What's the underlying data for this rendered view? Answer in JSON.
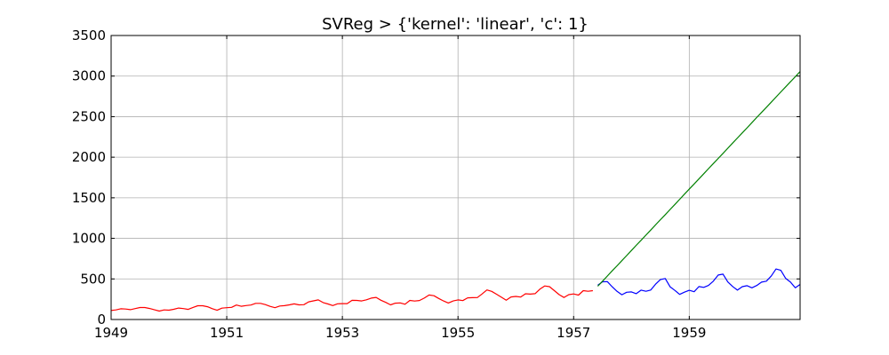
{
  "chart_data": {
    "type": "line",
    "title": "SVReg > {'kernel': 'linear', 'c': 1}",
    "xlabel": "",
    "ylabel": "",
    "xlim": [
      1949.0,
      1960.917
    ],
    "ylim": [
      0,
      3500
    ],
    "x_ticks": [
      1949,
      1951,
      1953,
      1955,
      1957,
      1959
    ],
    "x_tick_labels": [
      "1949",
      "1951",
      "1953",
      "1955",
      "1957",
      "1959"
    ],
    "y_ticks": [
      0,
      500,
      1000,
      1500,
      2000,
      2500,
      3000,
      3500
    ],
    "y_tick_labels": [
      "0",
      "500",
      "1000",
      "1500",
      "2000",
      "2500",
      "3000",
      "3500"
    ],
    "grid": true,
    "legend": "none",
    "series": [
      {
        "color": "#ff0000",
        "x_start": 1949.0,
        "x_step": 0.08333,
        "values": [
          112,
          118,
          132,
          129,
          121,
          135,
          148,
          148,
          136,
          119,
          104,
          118,
          115,
          126,
          141,
          135,
          125,
          149,
          170,
          170,
          158,
          133,
          114,
          140,
          145,
          150,
          178,
          163,
          172,
          178,
          199,
          199,
          184,
          162,
          146,
          166,
          171,
          180,
          193,
          181,
          183,
          218,
          230,
          242,
          209,
          191,
          172,
          194,
          196,
          196,
          236,
          235,
          229,
          243,
          264,
          272,
          237,
          211,
          180,
          201,
          204,
          188,
          235,
          227,
          234,
          264,
          302,
          293,
          259,
          229,
          203,
          229,
          242,
          233,
          267,
          269,
          270,
          315,
          364,
          347,
          312,
          274,
          237,
          278,
          284,
          277,
          317,
          313,
          318,
          374,
          413,
          405,
          355,
          306,
          271,
          306,
          315,
          301,
          356,
          348,
          355
        ]
      },
      {
        "color": "#0000ff",
        "x_start": 1957.417,
        "x_step": 0.08333,
        "values": [
          422,
          465,
          467,
          404,
          347,
          305,
          336,
          340,
          318,
          362,
          348,
          363,
          435,
          491,
          505,
          404,
          359,
          310,
          337,
          360,
          342,
          406,
          396,
          420,
          472,
          548,
          559,
          463,
          407,
          362,
          405,
          417,
          391,
          419,
          461,
          472,
          535,
          622,
          606,
          508,
          461,
          390,
          432
        ]
      },
      {
        "color": "#008000",
        "x_start": 1957.417,
        "x_step": 0.08333,
        "values": [
          410,
          473,
          536,
          599,
          662,
          725,
          788,
          851,
          914,
          977,
          1040,
          1103,
          1166,
          1229,
          1292,
          1355,
          1418,
          1481,
          1544,
          1607,
          1670,
          1733,
          1796,
          1859,
          1922,
          1985,
          2048,
          2111,
          2174,
          2237,
          2300,
          2363,
          2426,
          2489,
          2552,
          2615,
          2678,
          2741,
          2804,
          2867,
          2930,
          2993,
          3056
        ]
      }
    ]
  }
}
